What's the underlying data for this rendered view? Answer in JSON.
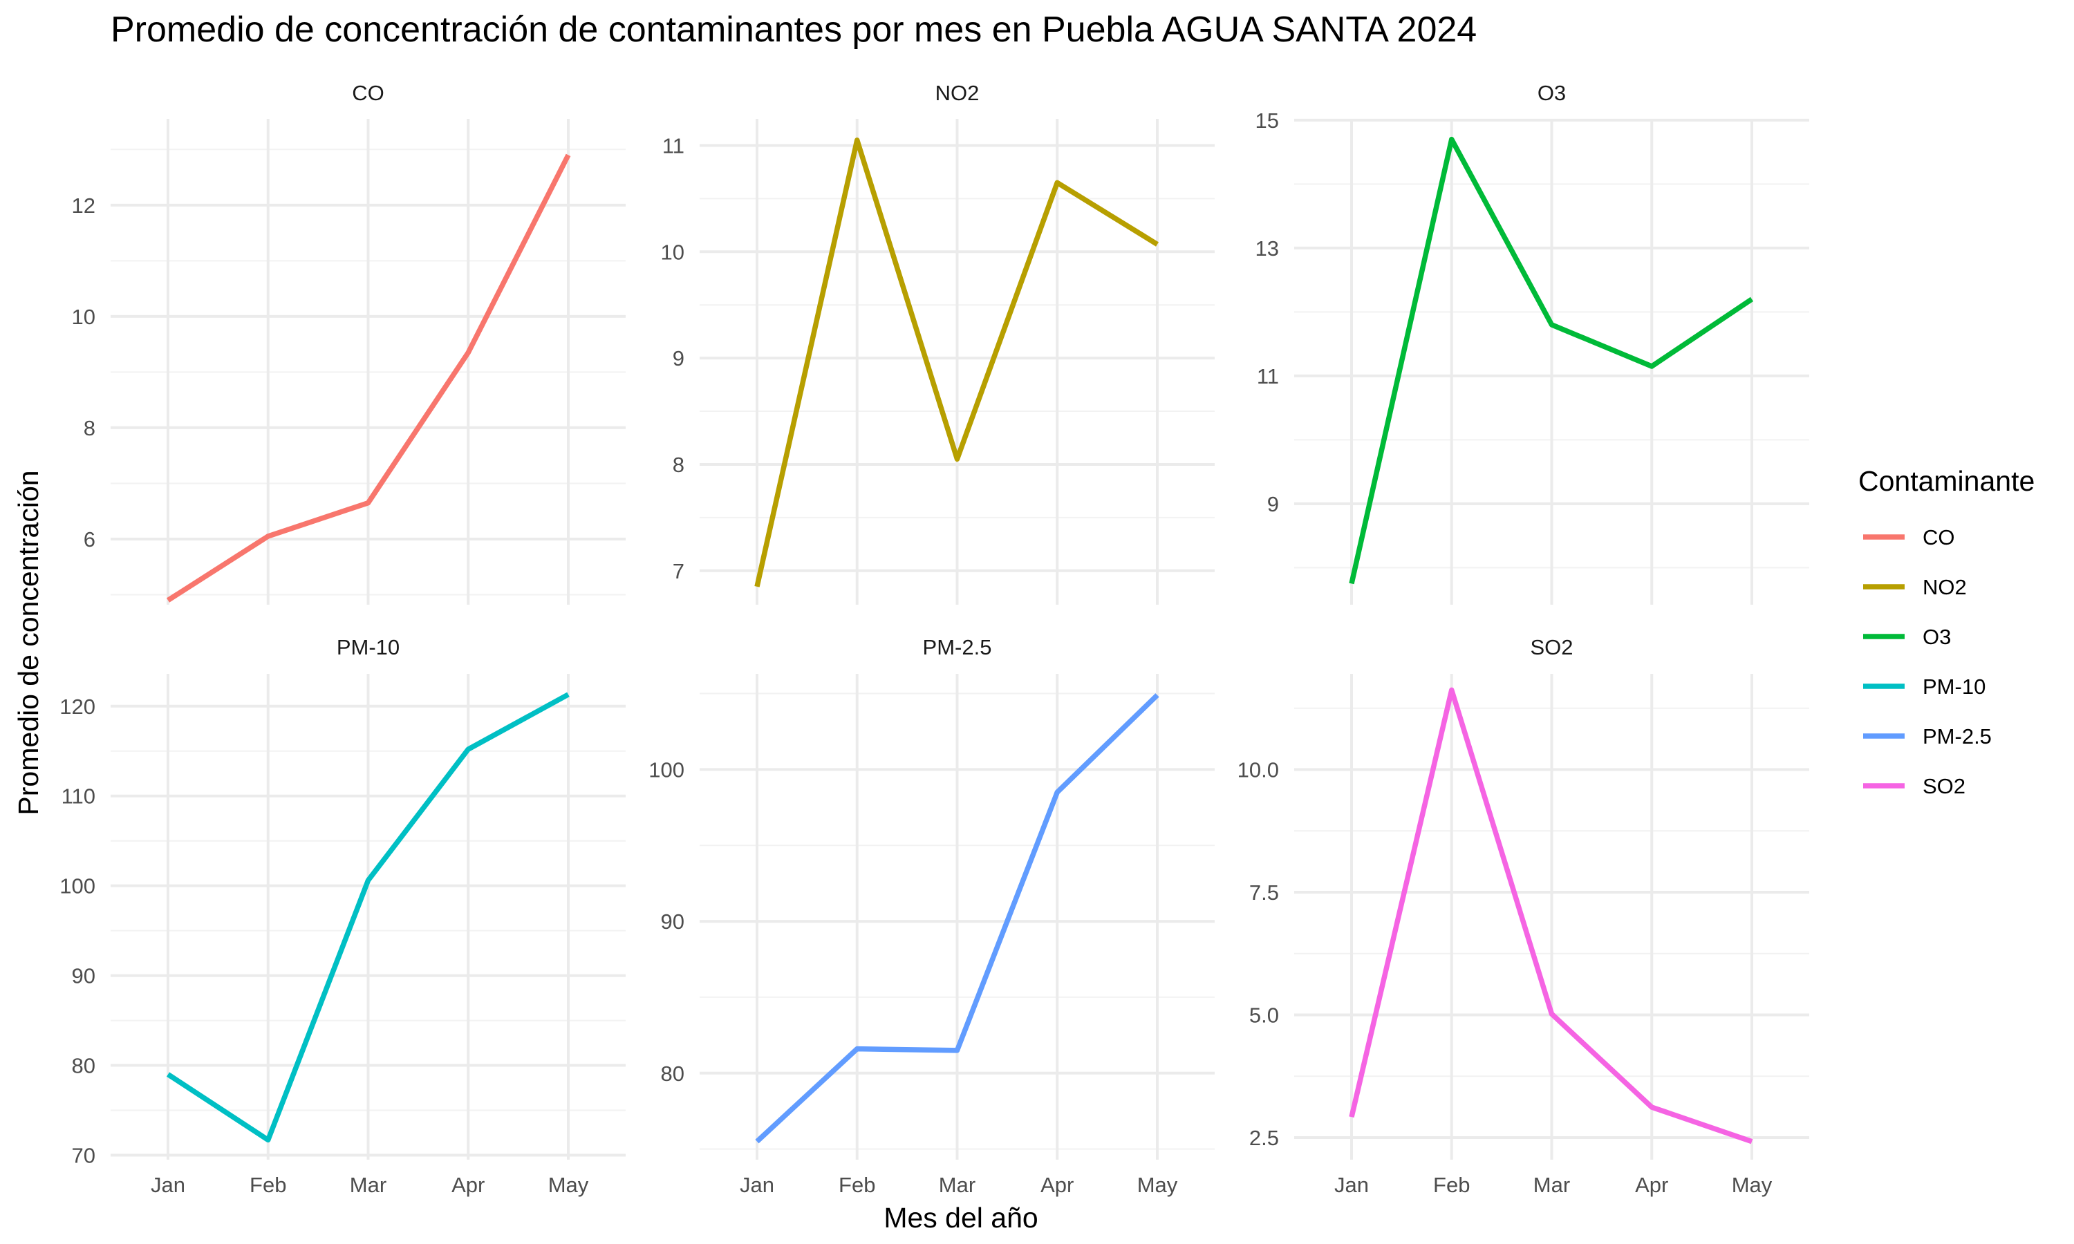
{
  "chart_data": {
    "type": "line",
    "title": "Promedio de concentración de contaminantes por mes en Puebla AGUA SANTA 2024",
    "xlabel": "Mes del año",
    "ylabel": "Promedio de concentración",
    "categories": [
      "Jan",
      "Feb",
      "Mar",
      "Apr",
      "May"
    ],
    "grid": true,
    "facets": "2 rows x 3 columns, free y scales",
    "legend": {
      "title": "Contaminante",
      "placement": "right",
      "entries": [
        "CO",
        "NO2",
        "O3",
        "PM-10",
        "PM-2.5",
        "SO2"
      ]
    },
    "panels": [
      {
        "name": "CO",
        "color": "#F8766D",
        "values": [
          4.9,
          6.05,
          6.65,
          9.35,
          12.9
        ],
        "ylim": [
          4.82,
          13.55
        ],
        "yticks": [
          6,
          8,
          10,
          12
        ]
      },
      {
        "name": "NO2",
        "color": "#B79F00",
        "values": [
          6.85,
          11.05,
          8.05,
          10.65,
          10.07
        ],
        "ylim": [
          6.68,
          11.25
        ],
        "yticks": [
          7,
          8,
          9,
          10,
          11
        ]
      },
      {
        "name": "O3",
        "color": "#00BA38",
        "values": [
          7.75,
          14.7,
          11.8,
          11.15,
          12.2
        ],
        "ylim": [
          7.42,
          15.02
        ],
        "yticks": [
          9,
          11,
          13,
          15
        ]
      },
      {
        "name": "PM-10",
        "color": "#00BFC4",
        "values": [
          79.0,
          71.7,
          100.6,
          115.2,
          121.3
        ],
        "ylim": [
          69.5,
          123.6
        ],
        "yticks": [
          70,
          80,
          90,
          100,
          110,
          120
        ]
      },
      {
        "name": "PM-2.5",
        "color": "#619CFF",
        "values": [
          75.5,
          81.6,
          81.5,
          98.5,
          104.9
        ],
        "ylim": [
          74.3,
          106.3
        ],
        "yticks": [
          80,
          90,
          100
        ]
      },
      {
        "name": "SO2",
        "color": "#F564E3",
        "values": [
          2.92,
          11.62,
          5.02,
          3.12,
          2.42
        ],
        "ylim": [
          2.05,
          11.95
        ],
        "yticks": [
          2.5,
          5.0,
          7.5,
          10.0
        ]
      }
    ]
  }
}
